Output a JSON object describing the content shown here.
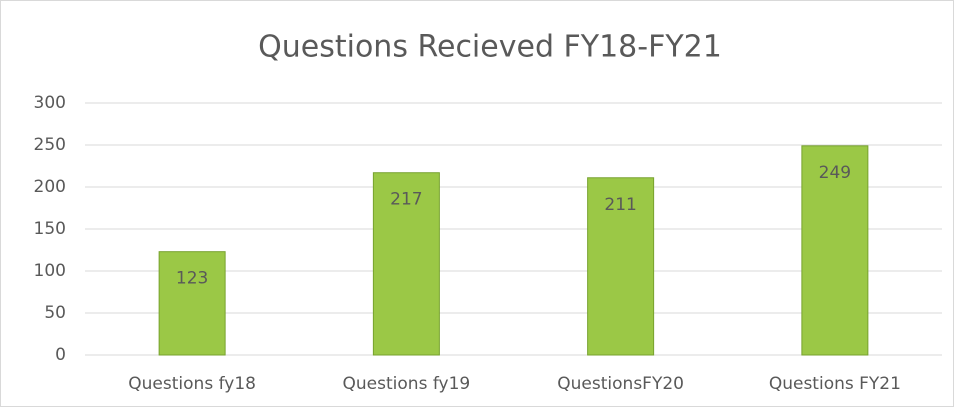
{
  "chart_data": {
    "type": "bar",
    "title": "Questions Recieved FY18-FY21",
    "categories": [
      "Questions fy18",
      "Questions fy19",
      "QuestionsFY20",
      "Questions FY21"
    ],
    "values": [
      123,
      217,
      211,
      249
    ],
    "color": "#9bc846",
    "ylim": [
      0,
      300
    ],
    "yticks": [
      0,
      50,
      100,
      150,
      200,
      250,
      300
    ],
    "grid": true,
    "data_labels": true
  }
}
